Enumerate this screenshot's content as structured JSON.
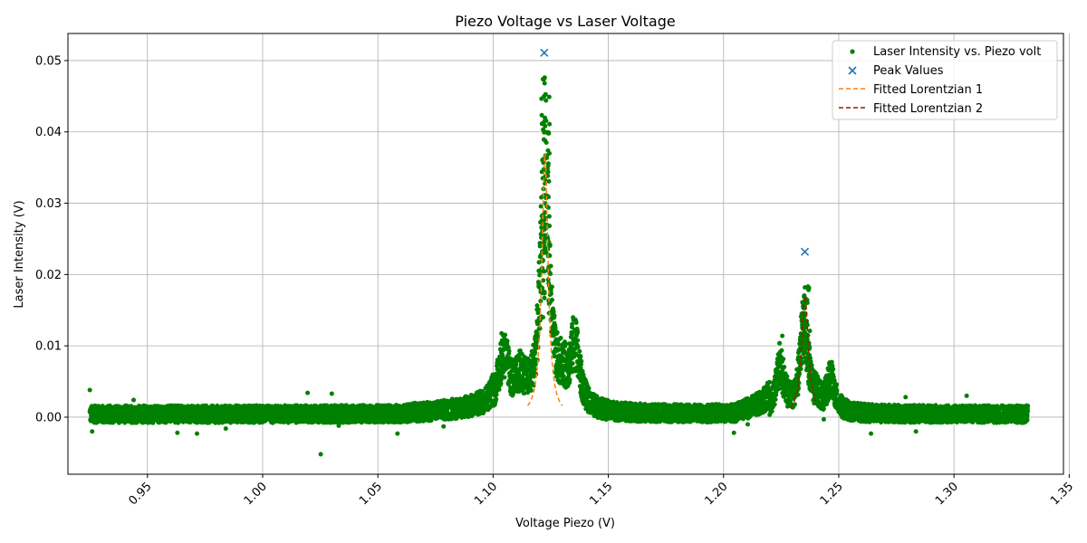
{
  "chart_data": {
    "type": "scatter",
    "title": "Piezo Voltage vs Laser Voltage",
    "xlabel": "Voltage Piezo (V)",
    "ylabel": "Laser Intensity (V)",
    "xlim": [
      0.9155,
      1.3475
    ],
    "ylim": [
      -0.008,
      0.0538
    ],
    "grid": true,
    "legend_position": "top-right",
    "x_ticks": [
      0.95,
      1.0,
      1.05,
      1.1,
      1.15,
      1.2,
      1.25,
      1.3,
      1.35
    ],
    "x_tick_labels": [
      "0.95",
      "1.00",
      "1.05",
      "1.10",
      "1.15",
      "1.20",
      "1.25",
      "1.30",
      "1.35"
    ],
    "y_ticks": [
      0.0,
      0.01,
      0.02,
      0.03,
      0.04,
      0.05
    ],
    "y_tick_labels": [
      "0.00",
      "0.01",
      "0.02",
      "0.03",
      "0.04",
      "0.05"
    ],
    "x_range_data": [
      0.925,
      1.332
    ],
    "series": [
      {
        "name": "Laser Intensity vs. Piezo volt",
        "kind": "scatter",
        "color": "#008000",
        "x": [
          0.925,
          0.926,
          0.9262,
          0.944,
          0.963,
          0.9715,
          0.984,
          1.0195,
          1.0252,
          1.03,
          1.033,
          1.0585,
          1.066,
          1.0785,
          1.2045,
          1.2105,
          1.2255,
          1.2435,
          1.264,
          1.279,
          1.2835,
          1.3055
        ],
        "y": [
          0.0038,
          -0.002,
          0.0008,
          0.0024,
          -0.0022,
          -0.0023,
          -0.0016,
          0.0034,
          -0.0052,
          0.0033,
          -0.0012,
          -0.0023,
          0.002,
          -0.0013,
          -0.0022,
          -0.001,
          0.0114,
          -0.0003,
          -0.0023,
          0.0028,
          -0.002,
          0.003
        ]
      },
      {
        "name": "Peak Values",
        "kind": "marker-x",
        "color": "#1f77b4",
        "x": [
          1.1222,
          1.2353
        ],
        "y": [
          0.0511,
          0.0232
        ]
      },
      {
        "name": "Fitted Lorentzian 1",
        "kind": "dashed-line",
        "color": "#ff7f0e",
        "center": 1.1225,
        "amplitude": 0.037,
        "width": 0.0016,
        "x_range": [
          1.115,
          1.13
        ]
      },
      {
        "name": "Fitted Lorentzian 2",
        "kind": "dashed-line",
        "color": "#8b2500",
        "center": 1.2353,
        "amplitude": 0.017,
        "width": 0.0018,
        "x_range": [
          1.229,
          1.24
        ]
      }
    ]
  }
}
